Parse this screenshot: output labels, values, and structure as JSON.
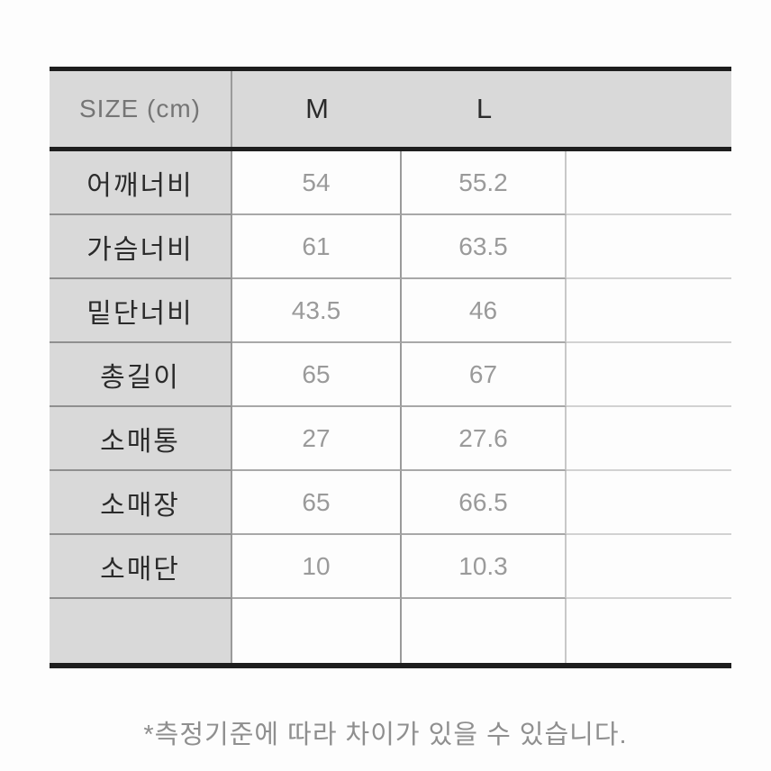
{
  "chart_data": {
    "type": "table",
    "title": "SIZE (cm)",
    "columns": [
      "SIZE (cm)",
      "M",
      "L"
    ],
    "rows": [
      [
        "어깨너비",
        54,
        55.2
      ],
      [
        "가슴너비",
        61,
        63.5
      ],
      [
        "밑단너비",
        43.5,
        46
      ],
      [
        "총길이",
        65,
        67
      ],
      [
        "소매통",
        27,
        27.6
      ],
      [
        "소매장",
        65,
        66.5
      ],
      [
        "소매단",
        10,
        10.3
      ]
    ],
    "footnote": "*측정기준에 따라 차이가 있을 수 있습니다.",
    "layout_hints": {
      "header_background": "#d9d9d9",
      "label_column_background": "#d9d9d9",
      "heavy_border_color": "#1e1e1e",
      "thin_border_color": "#9a9a9a",
      "value_text_color": "#9a9a9a",
      "label_text_color": "#2b2b2b",
      "units": "cm"
    }
  },
  "table": {
    "header": {
      "size_label": "SIZE (cm)",
      "col_m": "M",
      "col_l": "L",
      "col_tail": ""
    },
    "rows": [
      {
        "label": "어깨너비",
        "m": "54",
        "l": "55.2"
      },
      {
        "label": "가슴너비",
        "m": "61",
        "l": "63.5"
      },
      {
        "label": "밑단너비",
        "m": "43.5",
        "l": "46"
      },
      {
        "label": "총길이",
        "m": "65",
        "l": "67"
      },
      {
        "label": "소매통",
        "m": "27",
        "l": "27.6"
      },
      {
        "label": "소매장",
        "m": "65",
        "l": "66.5"
      },
      {
        "label": "소매단",
        "m": "10",
        "l": "10.3"
      },
      {
        "label": "",
        "m": "",
        "l": ""
      }
    ]
  },
  "footnote": {
    "text": "*측정기준에 따라 차이가 있을 수 있습니다."
  }
}
